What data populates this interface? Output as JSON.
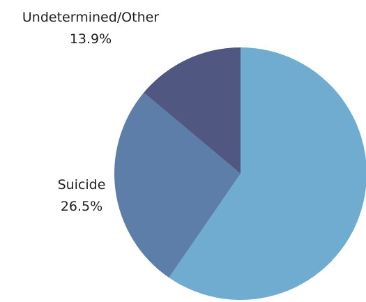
{
  "chart_data": {
    "type": "pie",
    "title": "",
    "start_angle_deg": 0,
    "direction": "clockwise",
    "slices": [
      {
        "name": "",
        "value": 59.6,
        "label": "",
        "percent_label": "",
        "color": "#70acd0"
      },
      {
        "name": "Suicide",
        "value": 26.5,
        "label": "Suicide",
        "percent_label": "26.5%",
        "color": "#5d7ea9"
      },
      {
        "name": "Undetermined/Other",
        "value": 13.9,
        "label": "Undetermined/Other",
        "percent_label": "13.9%",
        "color": "#505781"
      }
    ]
  }
}
